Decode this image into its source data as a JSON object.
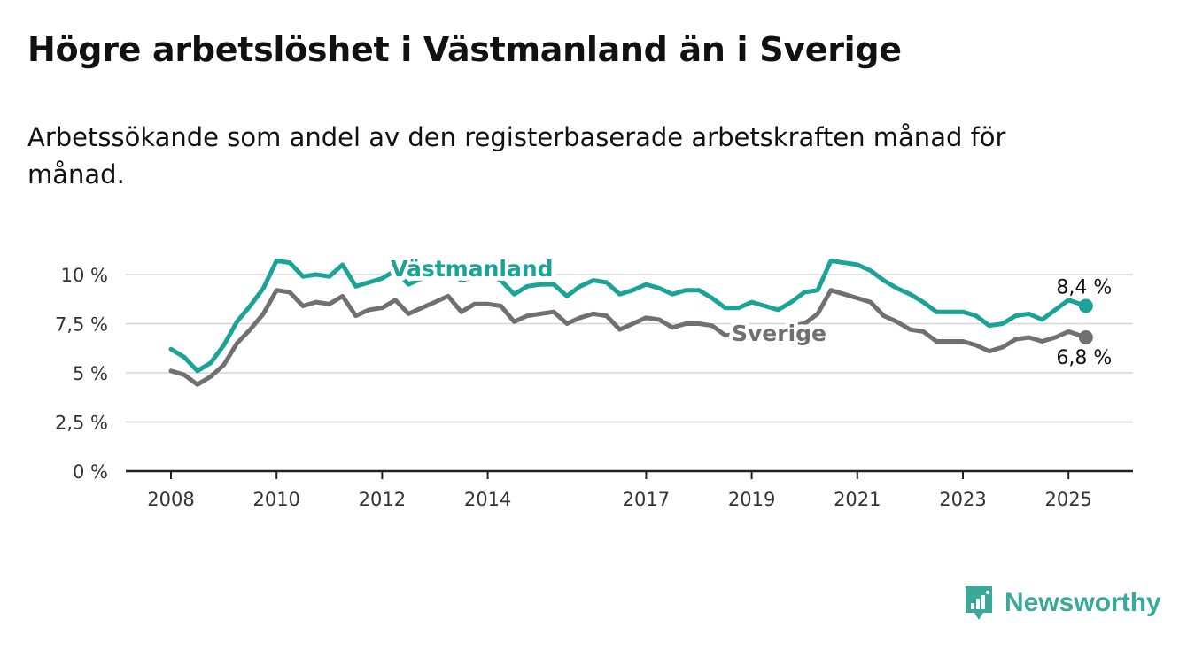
{
  "title": "Högre arbetslöshet i Västmanland än i Sverige",
  "subtitle": "Arbetssökande som andel av den registerbaserade arbetskraften månad för månad.",
  "brand": {
    "name": "Newsworthy",
    "icon": "newsworthy-logo-icon",
    "color": "#3aa99a"
  },
  "chart_data": {
    "type": "line",
    "title": "Högre arbetslöshet i Västmanland än i Sverige",
    "subtitle": "Arbetssökande som andel av den registerbaserade arbetskraften månad för månad.",
    "xlabel": "",
    "ylabel": "",
    "x_ticks": [
      2008,
      2010,
      2012,
      2014,
      2017,
      2019,
      2021,
      2023,
      2025
    ],
    "x_tick_labels": [
      "2008",
      "2010",
      "2012",
      "2014",
      "2017",
      "2019",
      "2021",
      "2023",
      "2025"
    ],
    "y_ticks": [
      0,
      2.5,
      5,
      7.5,
      10
    ],
    "y_tick_labels": [
      "0 %",
      "2,5 %",
      "5 %",
      "7,5 %",
      "10 %"
    ],
    "ylim": [
      0,
      10.9
    ],
    "grid": "horizontal",
    "legend": "direct labels on lines",
    "series": [
      {
        "name": "Västmanland",
        "color": "#1aa396",
        "end_label": "8,4 %",
        "points": [
          [
            2008.0,
            6.2
          ],
          [
            2008.25,
            5.8
          ],
          [
            2008.5,
            5.1
          ],
          [
            2008.75,
            5.5
          ],
          [
            2009.0,
            6.4
          ],
          [
            2009.25,
            7.6
          ],
          [
            2009.5,
            8.4
          ],
          [
            2009.75,
            9.3
          ],
          [
            2010.0,
            10.7
          ],
          [
            2010.25,
            10.6
          ],
          [
            2010.5,
            9.9
          ],
          [
            2010.75,
            10.0
          ],
          [
            2011.0,
            9.9
          ],
          [
            2011.25,
            10.5
          ],
          [
            2011.5,
            9.4
          ],
          [
            2011.75,
            9.6
          ],
          [
            2012.0,
            9.8
          ],
          [
            2012.25,
            10.2
          ],
          [
            2012.5,
            9.5
          ],
          [
            2012.75,
            9.8
          ],
          [
            2013.0,
            10.2
          ],
          [
            2013.25,
            10.1
          ],
          [
            2013.5,
            9.7
          ],
          [
            2013.75,
            9.9
          ],
          [
            2014.0,
            10.0
          ],
          [
            2014.25,
            9.7
          ],
          [
            2014.5,
            9.0
          ],
          [
            2014.75,
            9.4
          ],
          [
            2015.0,
            9.5
          ],
          [
            2015.25,
            9.5
          ],
          [
            2015.5,
            8.9
          ],
          [
            2015.75,
            9.4
          ],
          [
            2016.0,
            9.7
          ],
          [
            2016.25,
            9.6
          ],
          [
            2016.5,
            9.0
          ],
          [
            2016.75,
            9.2
          ],
          [
            2017.0,
            9.5
          ],
          [
            2017.25,
            9.3
          ],
          [
            2017.5,
            9.0
          ],
          [
            2017.75,
            9.2
          ],
          [
            2018.0,
            9.2
          ],
          [
            2018.25,
            8.8
          ],
          [
            2018.5,
            8.3
          ],
          [
            2018.75,
            8.3
          ],
          [
            2019.0,
            8.6
          ],
          [
            2019.25,
            8.4
          ],
          [
            2019.5,
            8.2
          ],
          [
            2019.75,
            8.6
          ],
          [
            2020.0,
            9.1
          ],
          [
            2020.25,
            9.2
          ],
          [
            2020.5,
            10.7
          ],
          [
            2020.75,
            10.6
          ],
          [
            2021.0,
            10.5
          ],
          [
            2021.25,
            10.2
          ],
          [
            2021.5,
            9.7
          ],
          [
            2021.75,
            9.3
          ],
          [
            2022.0,
            9.0
          ],
          [
            2022.25,
            8.6
          ],
          [
            2022.5,
            8.1
          ],
          [
            2022.75,
            8.1
          ],
          [
            2023.0,
            8.1
          ],
          [
            2023.25,
            7.9
          ],
          [
            2023.5,
            7.4
          ],
          [
            2023.75,
            7.5
          ],
          [
            2024.0,
            7.9
          ],
          [
            2024.25,
            8.0
          ],
          [
            2024.5,
            7.7
          ],
          [
            2024.75,
            8.2
          ],
          [
            2025.0,
            8.7
          ],
          [
            2025.33,
            8.4
          ]
        ]
      },
      {
        "name": "Sverige",
        "color": "#707070",
        "end_label": "6,8 %",
        "points": [
          [
            2008.0,
            5.1
          ],
          [
            2008.25,
            4.9
          ],
          [
            2008.5,
            4.4
          ],
          [
            2008.75,
            4.8
          ],
          [
            2009.0,
            5.4
          ],
          [
            2009.25,
            6.5
          ],
          [
            2009.5,
            7.2
          ],
          [
            2009.75,
            8.0
          ],
          [
            2010.0,
            9.2
          ],
          [
            2010.25,
            9.1
          ],
          [
            2010.5,
            8.4
          ],
          [
            2010.75,
            8.6
          ],
          [
            2011.0,
            8.5
          ],
          [
            2011.25,
            8.9
          ],
          [
            2011.5,
            7.9
          ],
          [
            2011.75,
            8.2
          ],
          [
            2012.0,
            8.3
          ],
          [
            2012.25,
            8.7
          ],
          [
            2012.5,
            8.0
          ],
          [
            2012.75,
            8.3
          ],
          [
            2013.0,
            8.6
          ],
          [
            2013.25,
            8.9
          ],
          [
            2013.5,
            8.1
          ],
          [
            2013.75,
            8.5
          ],
          [
            2014.0,
            8.5
          ],
          [
            2014.25,
            8.4
          ],
          [
            2014.5,
            7.6
          ],
          [
            2014.75,
            7.9
          ],
          [
            2015.0,
            8.0
          ],
          [
            2015.25,
            8.1
          ],
          [
            2015.5,
            7.5
          ],
          [
            2015.75,
            7.8
          ],
          [
            2016.0,
            8.0
          ],
          [
            2016.25,
            7.9
          ],
          [
            2016.5,
            7.2
          ],
          [
            2016.75,
            7.5
          ],
          [
            2017.0,
            7.8
          ],
          [
            2017.25,
            7.7
          ],
          [
            2017.5,
            7.3
          ],
          [
            2017.75,
            7.5
          ],
          [
            2018.0,
            7.5
          ],
          [
            2018.25,
            7.4
          ],
          [
            2018.5,
            6.9
          ],
          [
            2018.75,
            7.0
          ],
          [
            2019.0,
            7.2
          ],
          [
            2019.25,
            7.1
          ],
          [
            2019.5,
            7.2
          ],
          [
            2019.75,
            7.4
          ],
          [
            2020.0,
            7.5
          ],
          [
            2020.25,
            8.0
          ],
          [
            2020.5,
            9.2
          ],
          [
            2020.75,
            9.0
          ],
          [
            2021.0,
            8.8
          ],
          [
            2021.25,
            8.6
          ],
          [
            2021.5,
            7.9
          ],
          [
            2021.75,
            7.6
          ],
          [
            2022.0,
            7.2
          ],
          [
            2022.25,
            7.1
          ],
          [
            2022.5,
            6.6
          ],
          [
            2022.75,
            6.6
          ],
          [
            2023.0,
            6.6
          ],
          [
            2023.25,
            6.4
          ],
          [
            2023.5,
            6.1
          ],
          [
            2023.75,
            6.3
          ],
          [
            2024.0,
            6.7
          ],
          [
            2024.25,
            6.8
          ],
          [
            2024.5,
            6.6
          ],
          [
            2024.75,
            6.8
          ],
          [
            2025.0,
            7.1
          ],
          [
            2025.33,
            6.8
          ]
        ]
      }
    ]
  }
}
